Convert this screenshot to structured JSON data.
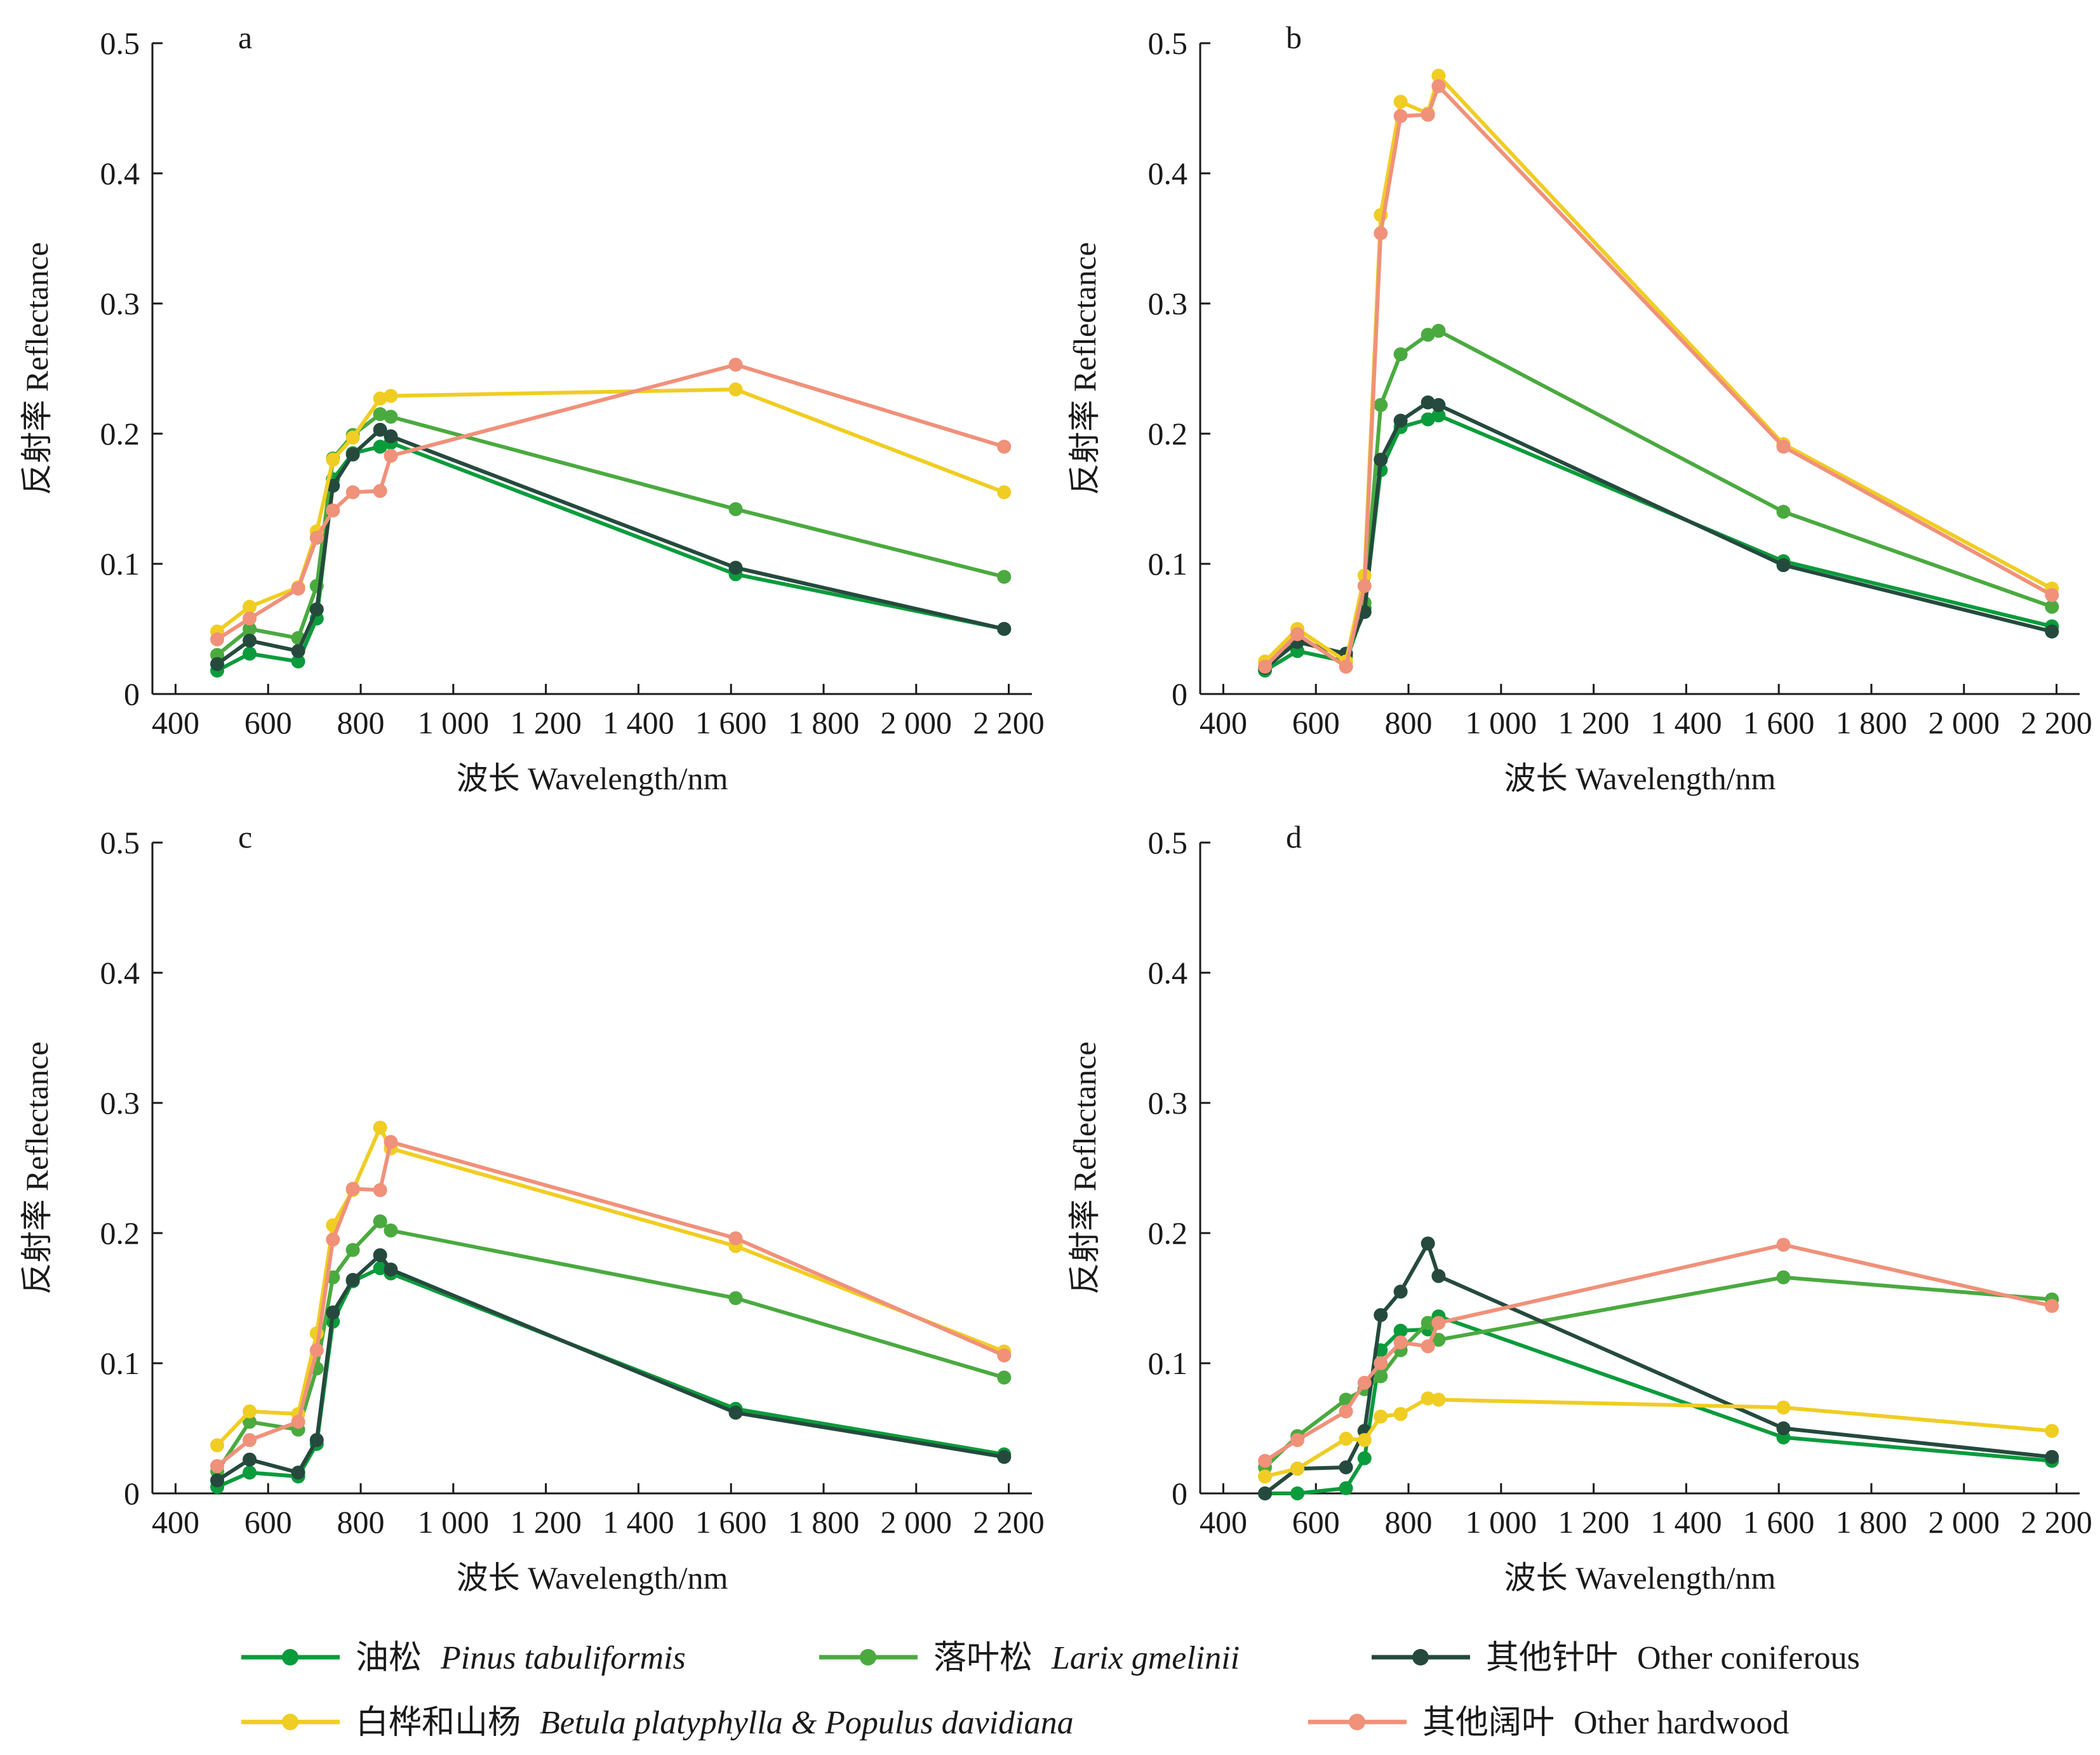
{
  "chart_data": [
    {
      "type": "line",
      "panel_label": "a",
      "xlabel": "波长  Wavelength/nm",
      "ylabel": "反射率  Reflectance",
      "xlim": [
        350,
        2250
      ],
      "ylim": [
        0,
        0.5
      ],
      "xticks": [
        400,
        600,
        800,
        1000,
        1200,
        1400,
        1600,
        1800,
        2000,
        2200
      ],
      "xtick_labels": [
        "400",
        "600",
        "800",
        "1 000",
        "1 200",
        "1 400",
        "1 600",
        "1 800",
        "2 000",
        "2 200"
      ],
      "yticks": [
        0,
        0.1,
        0.2,
        0.3,
        0.4,
        0.5
      ],
      "ytick_labels": [
        "0",
        "0.1",
        "0.2",
        "0.3",
        "0.4",
        "0.5"
      ],
      "x": [
        490,
        560,
        665,
        705,
        740,
        783,
        842,
        865,
        1610,
        2190
      ],
      "series": [
        {
          "name": "油松  Pinus tabuliformis",
          "color": "#0a9b3c",
          "values": [
            0.018,
            0.031,
            0.025,
            0.058,
            0.165,
            0.185,
            0.19,
            0.193,
            0.092,
            0.05
          ]
        },
        {
          "name": "落叶松  Larix gmelinii",
          "color": "#4aaa3f",
          "values": [
            0.03,
            0.05,
            0.043,
            0.083,
            0.181,
            0.199,
            0.215,
            0.213,
            0.142,
            0.09
          ]
        },
        {
          "name": "其他针叶  Other coniferous",
          "color": "#254a3d",
          "values": [
            0.023,
            0.041,
            0.033,
            0.065,
            0.16,
            0.184,
            0.203,
            0.198,
            0.097,
            0.05
          ]
        },
        {
          "name": "白桦和山杨  Betula platyphylla & Populus davidiana",
          "color": "#f0cd23",
          "values": [
            0.048,
            0.067,
            0.082,
            0.125,
            0.18,
            0.197,
            0.227,
            0.229,
            0.234,
            0.155
          ]
        },
        {
          "name": "其他阔叶  Other hardwood",
          "color": "#f0917a",
          "values": [
            0.042,
            0.058,
            0.081,
            0.12,
            0.141,
            0.155,
            0.156,
            0.183,
            0.253,
            0.19
          ]
        }
      ]
    },
    {
      "type": "line",
      "panel_label": "b",
      "xlabel": "波长  Wavelength/nm",
      "ylabel": "反射率  Reflectance",
      "xlim": [
        350,
        2250
      ],
      "ylim": [
        0,
        0.5
      ],
      "xticks": [
        400,
        600,
        800,
        1000,
        1200,
        1400,
        1600,
        1800,
        2000,
        2200
      ],
      "xtick_labels": [
        "400",
        "600",
        "800",
        "1 000",
        "1 200",
        "1 400",
        "1 600",
        "1 800",
        "2 000",
        "2 200"
      ],
      "yticks": [
        0,
        0.1,
        0.2,
        0.3,
        0.4,
        0.5
      ],
      "ytick_labels": [
        "0",
        "0.1",
        "0.2",
        "0.3",
        "0.4",
        "0.5"
      ],
      "x": [
        490,
        560,
        665,
        705,
        740,
        783,
        842,
        865,
        1610,
        2190
      ],
      "series": [
        {
          "name": "油松  Pinus tabuliformis",
          "color": "#0a9b3c",
          "values": [
            0.018,
            0.033,
            0.025,
            0.066,
            0.172,
            0.205,
            0.211,
            0.214,
            0.102,
            0.052
          ]
        },
        {
          "name": "落叶松  Larix gmelinii",
          "color": "#4aaa3f",
          "values": [
            0.02,
            0.042,
            0.029,
            0.07,
            0.222,
            0.261,
            0.276,
            0.279,
            0.14,
            0.067
          ]
        },
        {
          "name": "其他针叶  Other coniferous",
          "color": "#254a3d",
          "values": [
            0.02,
            0.04,
            0.031,
            0.063,
            0.18,
            0.21,
            0.224,
            0.222,
            0.099,
            0.048
          ]
        },
        {
          "name": "白桦和山杨  Betula platyphylla & Populus davidiana",
          "color": "#f0cd23",
          "values": [
            0.025,
            0.05,
            0.025,
            0.091,
            0.368,
            0.455,
            0.446,
            0.475,
            0.192,
            0.081
          ]
        },
        {
          "name": "其他阔叶  Other hardwood",
          "color": "#f0917a",
          "values": [
            0.021,
            0.046,
            0.021,
            0.083,
            0.354,
            0.444,
            0.445,
            0.467,
            0.19,
            0.076
          ]
        }
      ]
    },
    {
      "type": "line",
      "panel_label": "c",
      "xlabel": "波长  Wavelength/nm",
      "ylabel": "反射率  Reflectance",
      "xlim": [
        350,
        2250
      ],
      "ylim": [
        0,
        0.5
      ],
      "xticks": [
        400,
        600,
        800,
        1000,
        1200,
        1400,
        1600,
        1800,
        2000,
        2200
      ],
      "xtick_labels": [
        "400",
        "600",
        "800",
        "1 000",
        "1 200",
        "1 400",
        "1 600",
        "1 800",
        "2 000",
        "2 200"
      ],
      "yticks": [
        0,
        0.1,
        0.2,
        0.3,
        0.4,
        0.5
      ],
      "ytick_labels": [
        "0",
        "0.1",
        "0.2",
        "0.3",
        "0.4",
        "0.5"
      ],
      "x": [
        490,
        560,
        665,
        705,
        740,
        783,
        842,
        865,
        1610,
        2190
      ],
      "series": [
        {
          "name": "油松  Pinus tabuliformis",
          "color": "#0a9b3c",
          "values": [
            0.005,
            0.016,
            0.013,
            0.038,
            0.132,
            0.163,
            0.173,
            0.169,
            0.065,
            0.03
          ]
        },
        {
          "name": "落叶松  Larix gmelinii",
          "color": "#4aaa3f",
          "values": [
            0.017,
            0.055,
            0.049,
            0.096,
            0.166,
            0.187,
            0.209,
            0.202,
            0.15,
            0.089
          ]
        },
        {
          "name": "其他针叶  Other coniferous",
          "color": "#254a3d",
          "values": [
            0.01,
            0.026,
            0.016,
            0.041,
            0.139,
            0.164,
            0.183,
            0.172,
            0.062,
            0.028
          ]
        },
        {
          "name": "白桦和山杨  Betula platyphylla & Populus davidiana",
          "color": "#f0cd23",
          "values": [
            0.037,
            0.063,
            0.061,
            0.123,
            0.206,
            0.233,
            0.281,
            0.265,
            0.19,
            0.109
          ]
        },
        {
          "name": "其他阔叶  Other hardwood",
          "color": "#f0917a",
          "values": [
            0.021,
            0.041,
            0.055,
            0.11,
            0.195,
            0.234,
            0.233,
            0.27,
            0.196,
            0.106
          ]
        }
      ]
    },
    {
      "type": "line",
      "panel_label": "d",
      "xlabel": "波长  Wavelength/nm",
      "ylabel": "反射率  Reflectance",
      "xlim": [
        350,
        2250
      ],
      "ylim": [
        0,
        0.5
      ],
      "xticks": [
        400,
        600,
        800,
        1000,
        1200,
        1400,
        1600,
        1800,
        2000,
        2200
      ],
      "xtick_labels": [
        "400",
        "600",
        "800",
        "1 000",
        "1 200",
        "1 400",
        "1 600",
        "1 800",
        "2 000",
        "2 200"
      ],
      "yticks": [
        0,
        0.1,
        0.2,
        0.3,
        0.4,
        0.5
      ],
      "ytick_labels": [
        "0",
        "0.1",
        "0.2",
        "0.3",
        "0.4",
        "0.5"
      ],
      "x": [
        490,
        560,
        665,
        705,
        740,
        783,
        842,
        865,
        1610,
        2190
      ],
      "series": [
        {
          "name": "油松  Pinus tabuliformis",
          "color": "#0a9b3c",
          "values": [
            0.0,
            0.0,
            0.004,
            0.027,
            0.11,
            0.125,
            0.126,
            0.136,
            0.043,
            0.025
          ]
        },
        {
          "name": "落叶松  Larix gmelinii",
          "color": "#4aaa3f",
          "values": [
            0.02,
            0.044,
            0.072,
            0.08,
            0.09,
            0.11,
            0.131,
            0.118,
            0.166,
            0.149
          ]
        },
        {
          "name": "其他针叶  Other coniferous",
          "color": "#254a3d",
          "values": [
            0.0,
            0.019,
            0.02,
            0.048,
            0.137,
            0.155,
            0.192,
            0.167,
            0.05,
            0.028
          ]
        },
        {
          "name": "白桦和山杨  Betula platyphylla & Populus davidiana",
          "color": "#f0cd23",
          "values": [
            0.013,
            0.019,
            0.042,
            0.041,
            0.059,
            0.061,
            0.073,
            0.072,
            0.066,
            0.048
          ]
        },
        {
          "name": "其他阔叶  Other hardwood",
          "color": "#f0917a",
          "values": [
            0.025,
            0.041,
            0.063,
            0.085,
            0.1,
            0.116,
            0.113,
            0.131,
            0.191,
            0.144
          ]
        }
      ]
    }
  ],
  "legend": {
    "items": [
      {
        "cn": "油松",
        "latin": "Pinus tabuliformis",
        "italic": true,
        "color": "#0a9b3c"
      },
      {
        "cn": "落叶松",
        "latin": "Larix gmelinii",
        "italic": true,
        "color": "#4aaa3f"
      },
      {
        "cn": "其他针叶",
        "latin": "Other coniferous",
        "italic": false,
        "color": "#254a3d"
      },
      {
        "cn": "白桦和山杨",
        "latin": "Betula platyphylla & Populus davidiana",
        "italic": true,
        "color": "#f0cd23"
      },
      {
        "cn": "其他阔叶",
        "latin": "Other hardwood",
        "italic": false,
        "color": "#f0917a"
      }
    ]
  }
}
